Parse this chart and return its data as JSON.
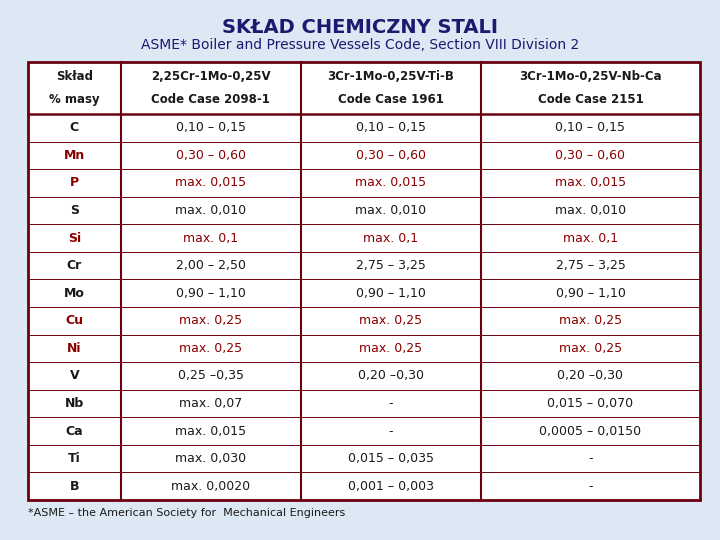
{
  "title": "SKŁAD CHEMICZNY STALI",
  "subtitle": "ASME* Boiler and Pressure Vessels Code, Section VIII Division 2",
  "footer": "*ASME – the American Society for  Mechanical Engineers",
  "bg_color": "#dce9f5",
  "table_bg": "#ffffff",
  "border_color": "#6b0010",
  "title_color": "#1a1a6e",
  "col_headers": [
    [
      "Skład",
      "% masy"
    ],
    [
      "2,25Cr-1Mo-0,25V",
      "Code Case 2098-1"
    ],
    [
      "3Cr-1Mo-0,25V-Ti-B",
      "Code Case 1961"
    ],
    [
      "3Cr-1Mo-0,25V-Nb-Ca",
      "Code Case 2151"
    ]
  ],
  "rows": [
    {
      "label": "C",
      "color": "#1a1a1a",
      "vals": [
        "0,10 – 0,15",
        "0,10 – 0,15",
        "0,10 – 0,15"
      ]
    },
    {
      "label": "Mn",
      "color": "#8b0000",
      "vals": [
        "0,30 – 0,60",
        "0,30 – 0,60",
        "0,30 – 0,60"
      ]
    },
    {
      "label": "P",
      "color": "#8b0000",
      "vals": [
        "max. 0,015",
        "max. 0,015",
        "max. 0,015"
      ]
    },
    {
      "label": "S",
      "color": "#1a1a1a",
      "vals": [
        "max. 0,010",
        "max. 0,010",
        "max. 0,010"
      ]
    },
    {
      "label": "Si",
      "color": "#8b0000",
      "vals": [
        "max. 0,1",
        "max. 0,1",
        "max. 0,1"
      ]
    },
    {
      "label": "Cr",
      "color": "#1a1a1a",
      "vals": [
        "2,00 – 2,50",
        "2,75 – 3,25",
        "2,75 – 3,25"
      ]
    },
    {
      "label": "Mo",
      "color": "#1a1a1a",
      "vals": [
        "0,90 – 1,10",
        "0,90 – 1,10",
        "0,90 – 1,10"
      ]
    },
    {
      "label": "Cu",
      "color": "#8b0000",
      "vals": [
        "max. 0,25",
        "max. 0,25",
        "max. 0,25"
      ]
    },
    {
      "label": "Ni",
      "color": "#8b0000",
      "vals": [
        "max. 0,25",
        "max. 0,25",
        "max. 0,25"
      ]
    },
    {
      "label": "V",
      "color": "#1a1a1a",
      "vals": [
        "0,25 –0,35",
        "0,20 –0,30",
        "0,20 –0,30"
      ]
    },
    {
      "label": "Nb",
      "color": "#1a1a1a",
      "vals": [
        "max. 0,07",
        "-",
        "0,015 – 0,070"
      ]
    },
    {
      "label": "Ca",
      "color": "#1a1a1a",
      "vals": [
        "max. 0,015",
        "-",
        "0,0005 – 0,0150"
      ]
    },
    {
      "label": "Ti",
      "color": "#1a1a1a",
      "vals": [
        "max. 0,030",
        "0,015 – 0,035",
        "-"
      ]
    },
    {
      "label": "B",
      "color": "#1a1a1a",
      "vals": [
        "max. 0,0020",
        "0,001 – 0,003",
        "-"
      ]
    }
  ]
}
